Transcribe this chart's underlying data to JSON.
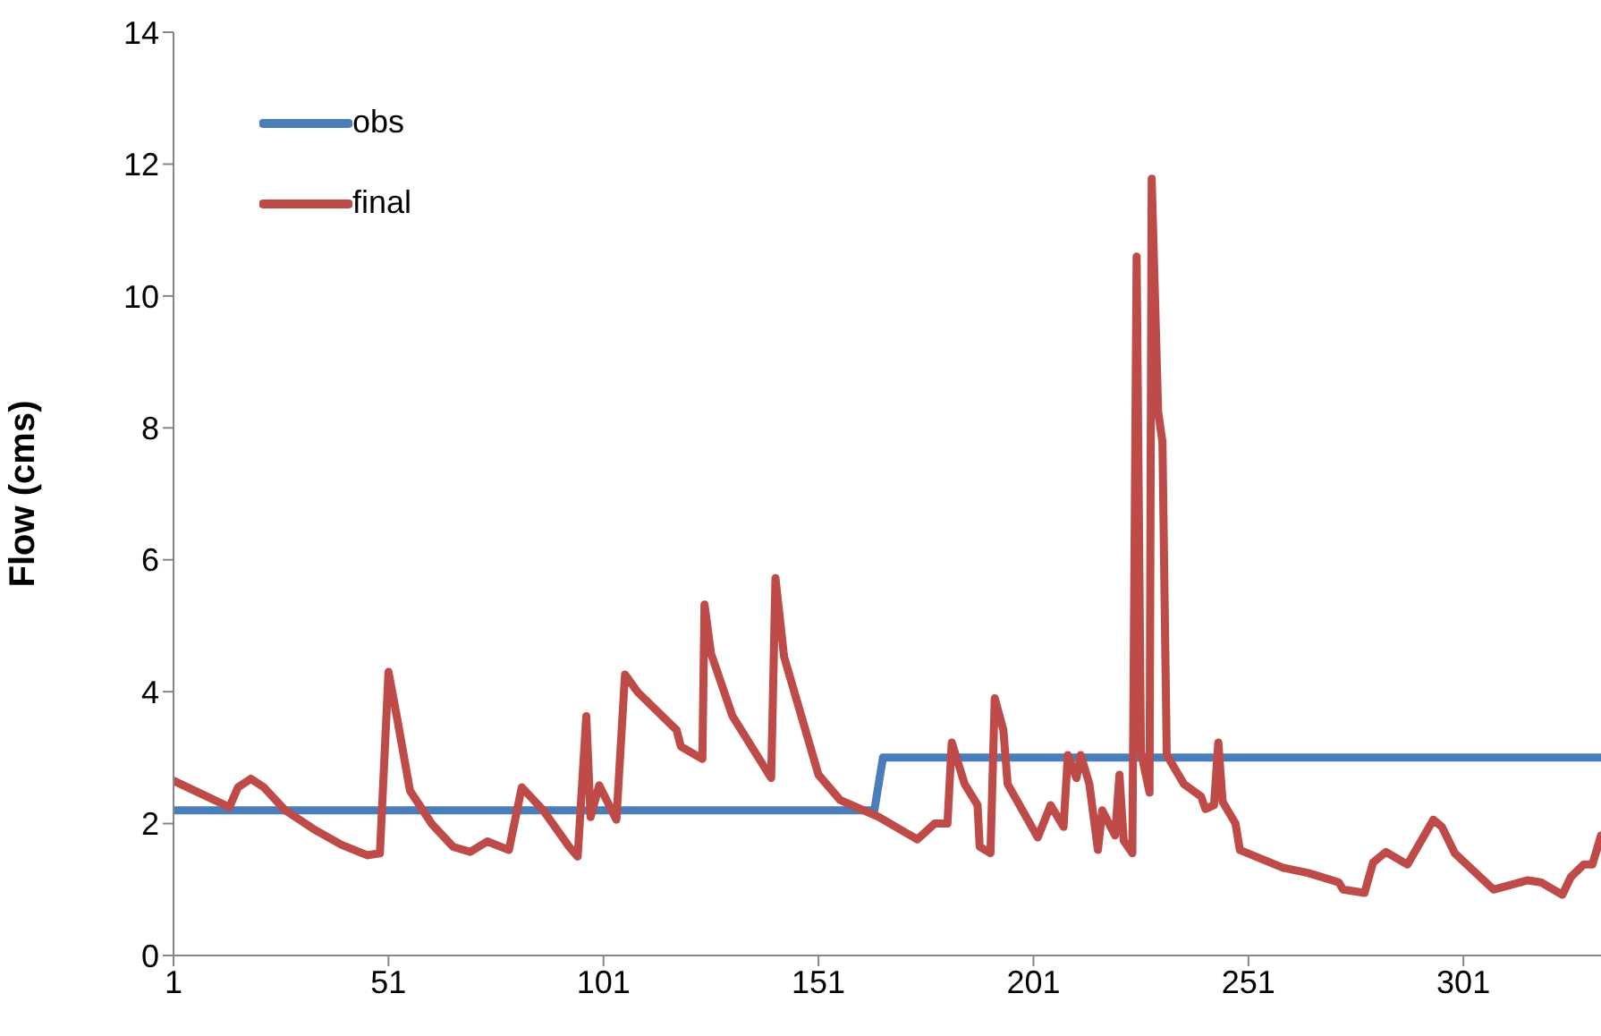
{
  "chart_data": {
    "type": "line",
    "ylabel": "Flow (cms)",
    "xlim": [
      1,
      333
    ],
    "xticks": [
      1,
      51,
      101,
      151,
      201,
      251,
      301
    ],
    "ylim": [
      0,
      14
    ],
    "yticks": [
      0,
      2,
      4,
      6,
      8,
      10,
      12,
      14
    ],
    "grid": false,
    "legend": "top left",
    "marker": "none",
    "line_style": "solid",
    "series": [
      {
        "name": "obs",
        "color": "#4a7ebb",
        "x": [
          1,
          164,
          166,
          333
        ],
        "values": [
          2.2,
          2.2,
          3.0,
          3.0
        ]
      },
      {
        "name": "final",
        "color": "#be4b48",
        "x": [
          1,
          14,
          16,
          19,
          22,
          27,
          34,
          40,
          46,
          49,
          51,
          53,
          56,
          61,
          66,
          70,
          74,
          79,
          82,
          87,
          93,
          95,
          97,
          98,
          100,
          104,
          106,
          109,
          118,
          119,
          124,
          124.5,
          126,
          131,
          140,
          141,
          143,
          151,
          156,
          165,
          174,
          178,
          181,
          182,
          185,
          188,
          188.5,
          191,
          192,
          194,
          195,
          202,
          205,
          208,
          209,
          211,
          212,
          214,
          216,
          217,
          220,
          221,
          222,
          224,
          225,
          226,
          228,
          228.5,
          230,
          231,
          232,
          236,
          240,
          241,
          243,
          244,
          245,
          248,
          249,
          259,
          265,
          272,
          273,
          278,
          280,
          283,
          288,
          294,
          296,
          299,
          308,
          316,
          319,
          324,
          326,
          329,
          331,
          333
        ],
        "values": [
          2.65,
          2.25,
          2.55,
          2.68,
          2.55,
          2.2,
          1.9,
          1.68,
          1.52,
          1.55,
          4.3,
          3.6,
          2.5,
          2.0,
          1.65,
          1.57,
          1.73,
          1.6,
          2.55,
          2.2,
          1.65,
          1.5,
          3.63,
          2.1,
          2.58,
          2.06,
          4.26,
          3.99,
          3.42,
          3.17,
          2.98,
          5.32,
          4.58,
          3.63,
          2.69,
          5.72,
          4.53,
          2.74,
          2.36,
          2.1,
          1.76,
          2.0,
          2.0,
          3.23,
          2.6,
          2.28,
          1.65,
          1.55,
          3.9,
          3.42,
          2.6,
          1.79,
          2.28,
          1.95,
          3.04,
          2.69,
          3.04,
          2.6,
          1.6,
          2.2,
          1.82,
          2.74,
          1.74,
          1.55,
          10.6,
          3.09,
          2.47,
          11.78,
          8.25,
          7.79,
          3.04,
          2.6,
          2.41,
          2.22,
          2.28,
          3.23,
          2.33,
          2.0,
          1.6,
          1.33,
          1.25,
          1.11,
          1.0,
          0.95,
          1.41,
          1.57,
          1.38,
          2.06,
          1.95,
          1.55,
          1.0,
          1.14,
          1.11,
          0.92,
          1.19,
          1.38,
          1.38,
          1.82
        ]
      }
    ]
  }
}
